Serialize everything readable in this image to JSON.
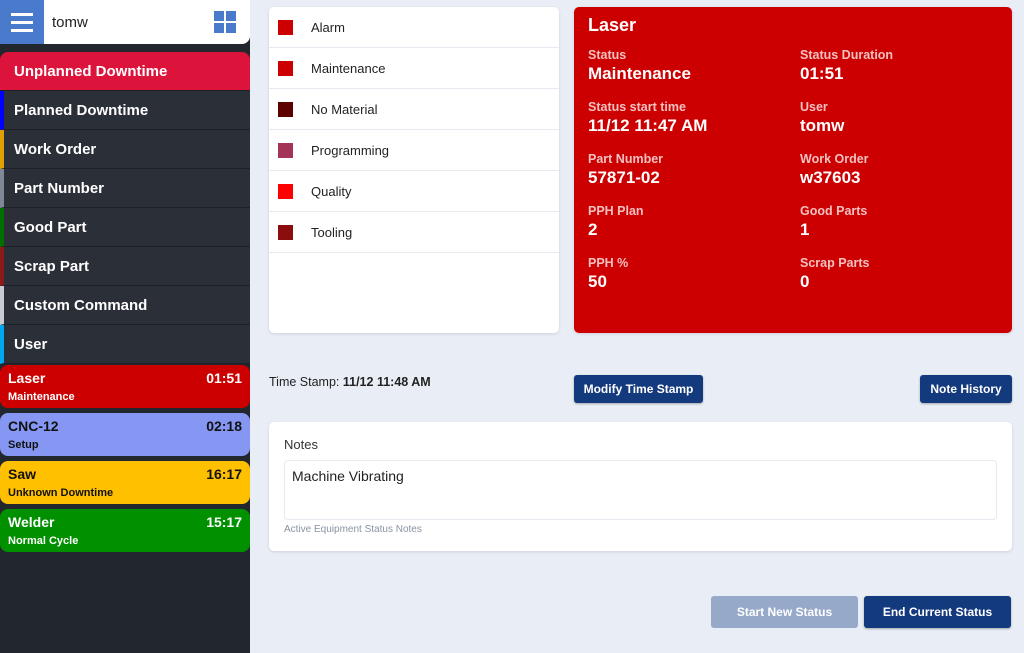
{
  "header": {
    "user": "tomw",
    "menu_icon": "hamburger-icon",
    "apps_icon": "grid-icon"
  },
  "menu": [
    {
      "label": "Unplanned Downtime",
      "color": "#dc143c"
    },
    {
      "label": "Planned Downtime",
      "color": "#0000ff"
    },
    {
      "label": "Work Order",
      "color": "#e0a000"
    },
    {
      "label": "Part Number",
      "color": "#808898"
    },
    {
      "label": "Good Part",
      "color": "#007000"
    },
    {
      "label": "Scrap Part",
      "color": "#8b1a1a"
    },
    {
      "label": "Custom Command",
      "color": "#c8cbd2"
    },
    {
      "label": "User",
      "color": "#00a8f0"
    }
  ],
  "equipment": [
    {
      "name": "Laser",
      "time": "01:51",
      "status": "Maintenance",
      "bg": "#cc0000",
      "fg": "#ffffff"
    },
    {
      "name": "CNC-12",
      "time": "02:18",
      "status": "Setup",
      "bg": "#8597f2",
      "fg": "#111111"
    },
    {
      "name": "Saw",
      "time": "16:17",
      "status": "Unknown Downtime",
      "bg": "#ffc000",
      "fg": "#111111"
    },
    {
      "name": "Welder",
      "time": "15:17",
      "status": "Normal Cycle",
      "bg": "#009000",
      "fg": "#ffffff"
    }
  ],
  "statuses": [
    {
      "label": "Alarm",
      "color": "#cc0000"
    },
    {
      "label": "Maintenance",
      "color": "#cc0000"
    },
    {
      "label": "No Material",
      "color": "#5c0000"
    },
    {
      "label": "Programming",
      "color": "#a33458"
    },
    {
      "label": "Quality",
      "color": "#ff0000"
    },
    {
      "label": "Tooling",
      "color": "#8b0d0d"
    }
  ],
  "detail": {
    "title": "Laser",
    "fields": [
      {
        "label": "Status",
        "value": "Maintenance"
      },
      {
        "label": "Status Duration",
        "value": "01:51"
      },
      {
        "label": "Status start time",
        "value": "11/12 11:47 AM"
      },
      {
        "label": "User",
        "value": "tomw"
      },
      {
        "label": "Part Number",
        "value": "57871-02"
      },
      {
        "label": "Work Order",
        "value": "w37603"
      },
      {
        "label": "PPH Plan",
        "value": "2"
      },
      {
        "label": "Good Parts",
        "value": "1"
      },
      {
        "label": "PPH %",
        "value": "50"
      },
      {
        "label": "Scrap Parts",
        "value": "0"
      }
    ]
  },
  "timestamp": {
    "label": "Time Stamp:",
    "value": "11/12 11:48 AM"
  },
  "buttons": {
    "modify": "Modify Time Stamp",
    "history": "Note History",
    "start": "Start New Status",
    "end": "End Current Status"
  },
  "notes": {
    "label": "Notes",
    "value": "Machine Vibrating",
    "hint": "Active Equipment Status Notes"
  }
}
